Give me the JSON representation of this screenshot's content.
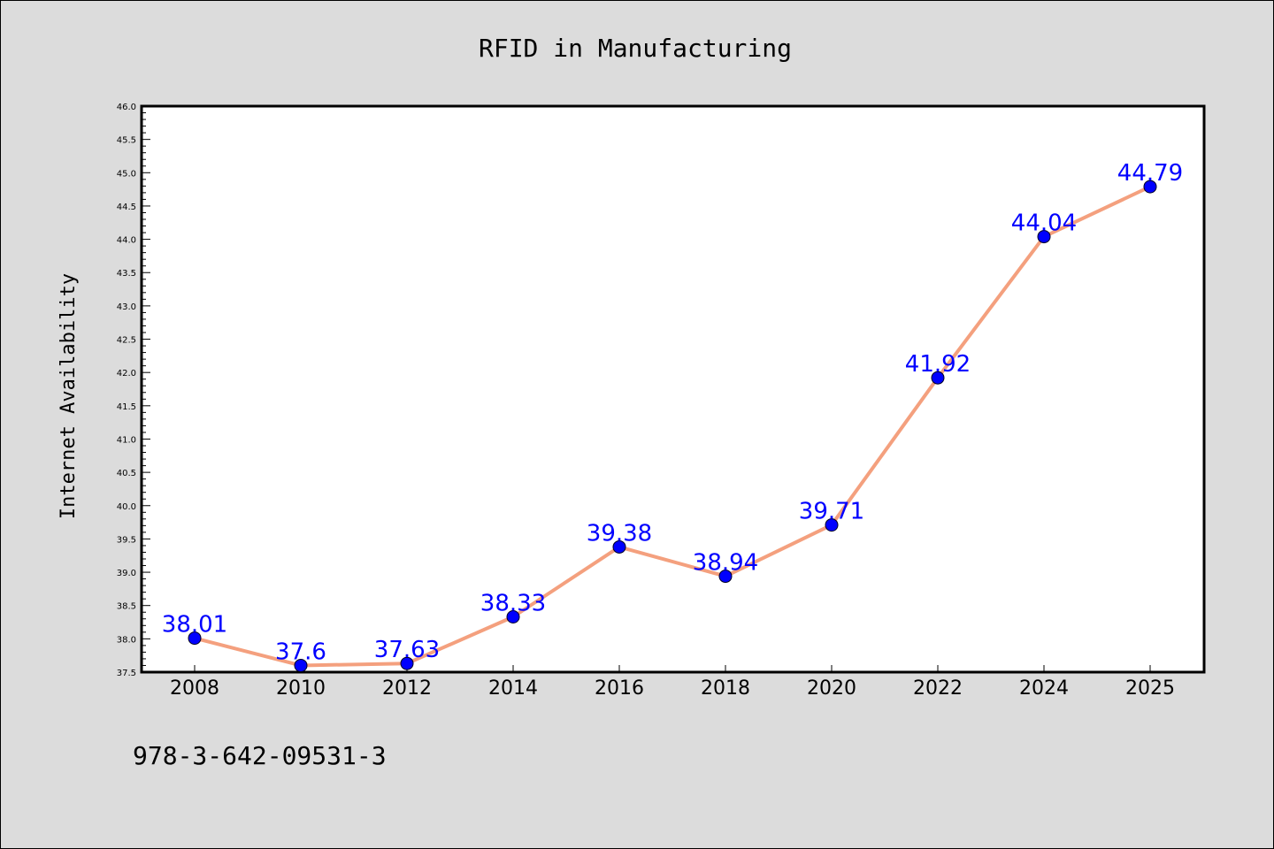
{
  "chart_data": {
    "type": "line",
    "title": "RFID in Manufacturing",
    "xlabel": "",
    "ylabel": "Internet Availability",
    "categories": [
      "2008",
      "2010",
      "2012",
      "2014",
      "2016",
      "2018",
      "2020",
      "2022",
      "2024",
      "2025"
    ],
    "series": [
      {
        "values": [
          38.01,
          37.6,
          37.63,
          38.33,
          39.38,
          38.94,
          39.71,
          41.92,
          44.04,
          44.79
        ],
        "labels": [
          "38.01",
          "37.6",
          "37.63",
          "38.33",
          "39.38",
          "38.94",
          "39.71",
          "41.92",
          "44.04",
          "44.79"
        ],
        "line_color": "#f4a07e",
        "marker_color": "#0000ff"
      }
    ],
    "ylim": [
      37.5,
      46.0
    ],
    "yticks": [
      "37.5",
      "38.0",
      "38.5",
      "39.0",
      "39.5",
      "40.0",
      "40.5",
      "41.0",
      "41.5",
      "42.0",
      "42.5",
      "43.0",
      "43.5",
      "44.0",
      "44.5",
      "45.0",
      "45.5",
      "46.0"
    ],
    "grid": false,
    "legend": "none"
  },
  "footer": {
    "text": "978-3-642-09531-3"
  },
  "colors": {
    "background": "#dcdcdc",
    "plot_background": "#ffffff"
  }
}
